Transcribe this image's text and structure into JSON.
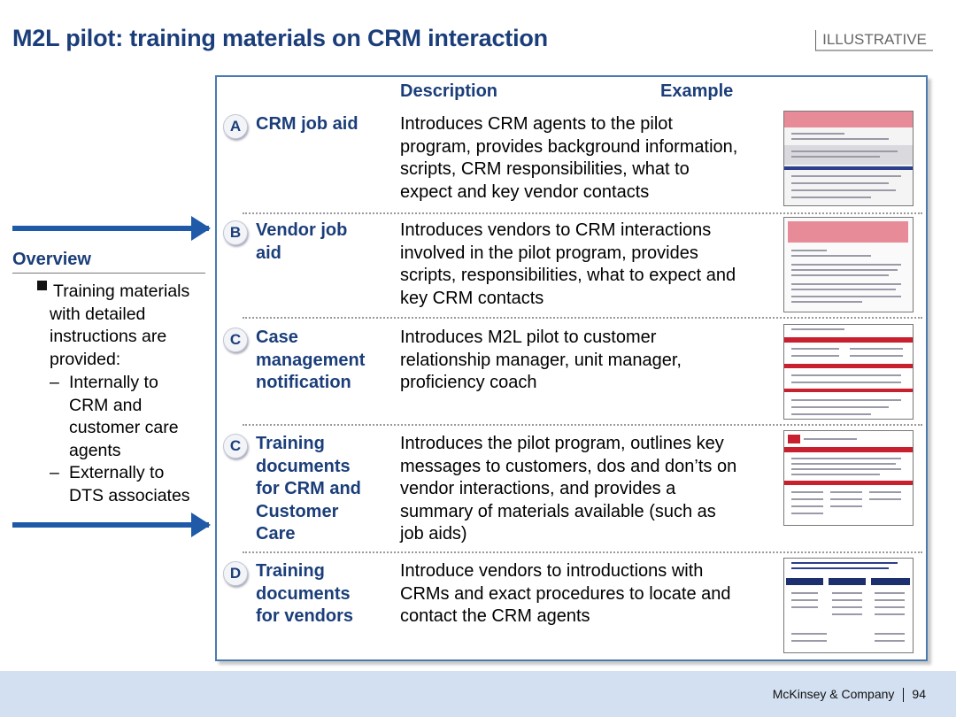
{
  "header": {
    "title": "M2L pilot: training materials on CRM interaction",
    "tag": "ILLUSTRATIVE"
  },
  "overview": {
    "title": "Overview",
    "bullet": "Training materials with detailed instructions are provided:",
    "bullet_lines": [
      "Training materials",
      "with detailed",
      "instructions are",
      "provided:"
    ],
    "subs": [
      {
        "dash": "–",
        "lines": [
          "Internally to",
          "CRM and",
          "customer care",
          "agents"
        ]
      },
      {
        "dash": "–",
        "lines": [
          "Externally to",
          "DTS associates"
        ]
      }
    ]
  },
  "table": {
    "col_description": "Description",
    "col_example": "Example",
    "rows": [
      {
        "badge": "A",
        "label_lines": [
          "CRM job aid"
        ],
        "desc_lines": [
          "Introduces CRM agents to the pilot",
          "program, provides background information,",
          "scripts, CRM responsibilities, what to",
          "expect and key vendor contacts"
        ]
      },
      {
        "badge": "B",
        "label_lines": [
          "Vendor job",
          "aid"
        ],
        "desc_lines": [
          "Introduces vendors to CRM interactions",
          "involved in the pilot program, provides",
          "scripts, responsibilities, what to expect and",
          "key CRM contacts"
        ]
      },
      {
        "badge": "C",
        "label_lines": [
          "Case",
          "management",
          "notification"
        ],
        "desc_lines": [
          "Introduces M2L pilot to customer",
          "relationship manager, unit manager,",
          "proficiency coach"
        ]
      },
      {
        "badge": "C",
        "label_lines": [
          "Training",
          "documents",
          "for CRM and",
          "Customer",
          "Care"
        ],
        "desc_lines": [
          "Introduces the pilot program, outlines key",
          "messages to customers, dos and don’ts on",
          "vendor interactions, and provides a",
          "summary of materials available (such as",
          "job aids)"
        ]
      },
      {
        "badge": "D",
        "label_lines": [
          "Training",
          "documents",
          "for vendors"
        ],
        "desc_lines": [
          "Introduce vendors to introductions with",
          "CRMs and exact procedures to locate and",
          "contact the CRM agents"
        ]
      }
    ]
  },
  "footer": {
    "company": "McKinsey & Company",
    "page": "94"
  },
  "colors": {
    "title_blue": "#1b3e7a",
    "arrow_blue": "#1e5aa8",
    "footer_band": "#d3e0f1",
    "panel_border": "#4a7bb0"
  }
}
